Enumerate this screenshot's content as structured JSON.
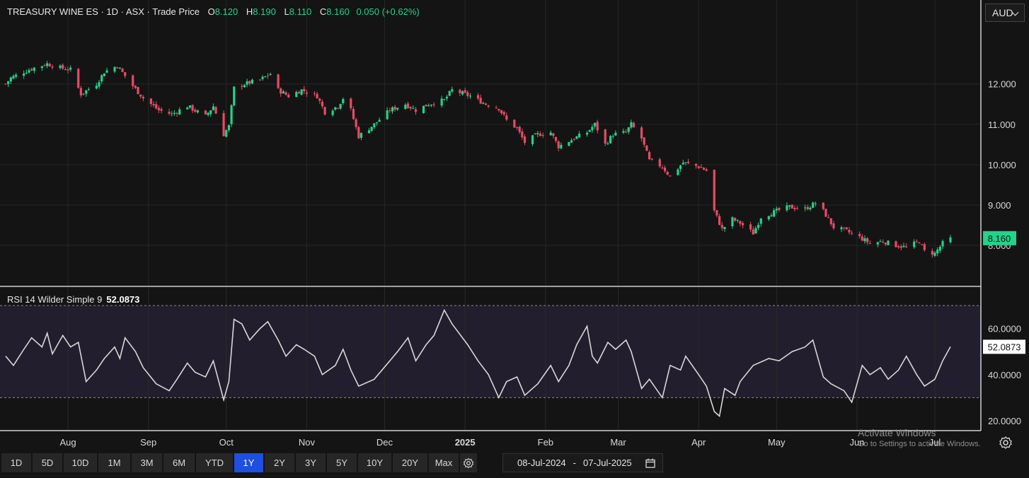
{
  "header": {
    "symbol": "TREASURY WINE ES",
    "interval": "1D",
    "exchange": "ASX",
    "price_type": "Trade Price",
    "open_label": "O",
    "open": "8.120",
    "high_label": "H",
    "high": "8.190",
    "low_label": "L",
    "low": "8.110",
    "close_label": "C",
    "close": "8.160",
    "change": "0.050 (+0.62%)"
  },
  "currency": "AUD",
  "colors": {
    "up": "#22d38a",
    "down": "#e84b66",
    "background": "#141414",
    "rsi_band": "#231e2d",
    "rsi_line": "#d7d7d7",
    "range_active": "#1f4fe0"
  },
  "rsi": {
    "label": "RSI 14 Wilder Simple 9",
    "value": "52.0873"
  },
  "range_buttons": [
    "1D",
    "5D",
    "10D",
    "1M",
    "3M",
    "6M",
    "YTD",
    "1Y",
    "2Y",
    "3Y",
    "5Y",
    "10Y",
    "20Y",
    "Max"
  ],
  "active_range": "1Y",
  "date_range": {
    "from": "08-Jul-2024",
    "to": "07-Jul-2025"
  },
  "watermark": {
    "line1": "Activate Windows",
    "line2": "Go to Settings to activate Windows."
  },
  "chart_data": [
    {
      "type": "candlestick",
      "name": "TREASURY WINE ES",
      "last_value_label": "8.160",
      "y_ticks": [
        "12.000",
        "11.000",
        "10.000",
        "9.000",
        "8.000"
      ],
      "y_tick_values": [
        12,
        11,
        10,
        9,
        8
      ],
      "ylim": [
        7.0,
        13.45
      ],
      "x_range": [
        "2024-07-08",
        "2025-07-07"
      ],
      "x_ticks": [
        {
          "label": "Aug",
          "date": "2024-08-01"
        },
        {
          "label": "Sep",
          "date": "2024-09-01"
        },
        {
          "label": "Oct",
          "date": "2024-10-01"
        },
        {
          "label": "Nov",
          "date": "2024-11-01"
        },
        {
          "label": "Dec",
          "date": "2024-12-01"
        },
        {
          "label": "2025",
          "date": "2025-01-01"
        },
        {
          "label": "Feb",
          "date": "2025-02-01"
        },
        {
          "label": "Mar",
          "date": "2025-03-01"
        },
        {
          "label": "Apr",
          "date": "2025-04-01"
        },
        {
          "label": "May",
          "date": "2025-05-01"
        },
        {
          "label": "Jun",
          "date": "2025-06-01"
        },
        {
          "label": "Jul",
          "date": "2025-07-01"
        }
      ],
      "close_path": [
        [
          "2024-07-08",
          12.0
        ],
        [
          "2024-07-10",
          12.15
        ],
        [
          "2024-07-15",
          12.3
        ],
        [
          "2024-07-19",
          12.4
        ],
        [
          "2024-07-24",
          12.5
        ],
        [
          "2024-07-29",
          12.4
        ],
        [
          "2024-08-02",
          12.35
        ],
        [
          "2024-08-06",
          11.75
        ],
        [
          "2024-08-12",
          12.0
        ],
        [
          "2024-08-15",
          12.3
        ],
        [
          "2024-08-20",
          12.45
        ],
        [
          "2024-08-26",
          11.95
        ],
        [
          "2024-08-30",
          11.65
        ],
        [
          "2024-09-05",
          11.35
        ],
        [
          "2024-09-10",
          11.25
        ],
        [
          "2024-09-16",
          11.45
        ],
        [
          "2024-09-20",
          11.3
        ],
        [
          "2024-09-23",
          11.2
        ],
        [
          "2024-09-26",
          11.45
        ],
        [
          "2024-09-30",
          10.75
        ],
        [
          "2024-10-02",
          10.95
        ],
        [
          "2024-10-04",
          11.9
        ],
        [
          "2024-10-08",
          12.0
        ],
        [
          "2024-10-14",
          12.1
        ],
        [
          "2024-10-18",
          12.25
        ],
        [
          "2024-10-21",
          11.85
        ],
        [
          "2024-10-25",
          11.7
        ],
        [
          "2024-10-30",
          11.85
        ],
        [
          "2024-11-05",
          11.7
        ],
        [
          "2024-11-08",
          11.3
        ],
        [
          "2024-11-13",
          11.45
        ],
        [
          "2024-11-15",
          11.65
        ],
        [
          "2024-11-18",
          11.35
        ],
        [
          "2024-11-21",
          10.7
        ],
        [
          "2024-11-27",
          11.0
        ],
        [
          "2024-12-03",
          11.35
        ],
        [
          "2024-12-09",
          11.5
        ],
        [
          "2024-12-13",
          11.35
        ],
        [
          "2024-12-18",
          11.5
        ],
        [
          "2024-12-24",
          11.6
        ],
        [
          "2024-12-27",
          11.85
        ],
        [
          "2025-01-03",
          11.7
        ],
        [
          "2025-01-09",
          11.5
        ],
        [
          "2025-01-14",
          11.4
        ],
        [
          "2025-01-17",
          11.1
        ],
        [
          "2025-01-21",
          10.9
        ],
        [
          "2025-01-24",
          10.55
        ],
        [
          "2025-01-29",
          10.75
        ],
        [
          "2025-02-03",
          10.8
        ],
        [
          "2025-02-06",
          10.45
        ],
        [
          "2025-02-12",
          10.65
        ],
        [
          "2025-02-17",
          10.8
        ],
        [
          "2025-02-20",
          11.0
        ],
        [
          "2025-02-24",
          10.5
        ],
        [
          "2025-02-27",
          10.75
        ],
        [
          "2025-03-04",
          10.8
        ],
        [
          "2025-03-06",
          11.0
        ],
        [
          "2025-03-10",
          10.65
        ],
        [
          "2025-03-13",
          10.1
        ],
        [
          "2025-03-18",
          9.95
        ],
        [
          "2025-03-21",
          9.7
        ],
        [
          "2025-03-26",
          10.05
        ],
        [
          "2025-04-01",
          9.95
        ],
        [
          "2025-04-04",
          9.85
        ],
        [
          "2025-04-07",
          8.85
        ],
        [
          "2025-04-10",
          8.4
        ],
        [
          "2025-04-14",
          8.65
        ],
        [
          "2025-04-17",
          8.55
        ],
        [
          "2025-04-22",
          8.3
        ],
        [
          "2025-04-25",
          8.7
        ],
        [
          "2025-05-01",
          8.85
        ],
        [
          "2025-05-06",
          8.95
        ],
        [
          "2025-05-12",
          8.9
        ],
        [
          "2025-05-16",
          9.05
        ],
        [
          "2025-05-19",
          8.85
        ],
        [
          "2025-05-23",
          8.45
        ],
        [
          "2025-05-28",
          8.35
        ],
        [
          "2025-06-02",
          8.2
        ],
        [
          "2025-06-06",
          8.05
        ],
        [
          "2025-06-11",
          8.1
        ],
        [
          "2025-06-16",
          8.0
        ],
        [
          "2025-06-20",
          7.95
        ],
        [
          "2025-06-25",
          8.1
        ],
        [
          "2025-06-27",
          7.85
        ],
        [
          "2025-07-01",
          7.8
        ],
        [
          "2025-07-04",
          8.05
        ],
        [
          "2025-07-07",
          8.16
        ]
      ]
    },
    {
      "type": "line",
      "name": "RSI 14 Wilder Simple 9",
      "last_value_label": "52.0873",
      "y_ticks": [
        "60.0000",
        "40.0000",
        "20.0000"
      ],
      "y_tick_values": [
        60,
        40,
        20
      ],
      "ylim": [
        16,
        78
      ],
      "band": [
        30,
        70
      ],
      "x_range": [
        "2024-07-08",
        "2025-07-07"
      ],
      "points": [
        [
          "2024-07-08",
          48
        ],
        [
          "2024-07-11",
          44
        ],
        [
          "2024-07-15",
          51
        ],
        [
          "2024-07-18",
          56
        ],
        [
          "2024-07-22",
          52
        ],
        [
          "2024-07-24",
          58
        ],
        [
          "2024-07-26",
          49
        ],
        [
          "2024-07-30",
          57
        ],
        [
          "2024-08-02",
          52
        ],
        [
          "2024-08-05",
          54
        ],
        [
          "2024-08-08",
          37
        ],
        [
          "2024-08-12",
          42
        ],
        [
          "2024-08-15",
          47
        ],
        [
          "2024-08-19",
          52
        ],
        [
          "2024-08-21",
          47
        ],
        [
          "2024-08-23",
          56
        ],
        [
          "2024-08-27",
          50
        ],
        [
          "2024-08-30",
          43
        ],
        [
          "2024-09-04",
          36
        ],
        [
          "2024-09-09",
          33
        ],
        [
          "2024-09-12",
          38
        ],
        [
          "2024-09-16",
          45
        ],
        [
          "2024-09-19",
          41
        ],
        [
          "2024-09-23",
          39
        ],
        [
          "2024-09-26",
          46
        ],
        [
          "2024-09-30",
          29
        ],
        [
          "2024-10-02",
          37
        ],
        [
          "2024-10-04",
          64
        ],
        [
          "2024-10-07",
          62
        ],
        [
          "2024-10-10",
          55
        ],
        [
          "2024-10-14",
          60
        ],
        [
          "2024-10-17",
          63
        ],
        [
          "2024-10-21",
          55
        ],
        [
          "2024-10-24",
          48
        ],
        [
          "2024-10-28",
          53
        ],
        [
          "2024-10-31",
          51
        ],
        [
          "2024-11-04",
          48
        ],
        [
          "2024-11-07",
          40
        ],
        [
          "2024-11-12",
          44
        ],
        [
          "2024-11-15",
          51
        ],
        [
          "2024-11-18",
          42
        ],
        [
          "2024-11-21",
          35
        ],
        [
          "2024-11-27",
          38
        ],
        [
          "2024-12-03",
          46
        ],
        [
          "2024-12-06",
          50
        ],
        [
          "2024-12-10",
          56
        ],
        [
          "2024-12-13",
          46
        ],
        [
          "2024-12-17",
          53
        ],
        [
          "2024-12-20",
          57
        ],
        [
          "2024-12-24",
          68
        ],
        [
          "2024-12-27",
          62
        ],
        [
          "2025-01-02",
          53
        ],
        [
          "2025-01-06",
          46
        ],
        [
          "2025-01-10",
          40
        ],
        [
          "2025-01-14",
          30
        ],
        [
          "2025-01-17",
          37
        ],
        [
          "2025-01-21",
          39
        ],
        [
          "2025-01-24",
          31
        ],
        [
          "2025-01-29",
          36
        ],
        [
          "2025-02-03",
          44
        ],
        [
          "2025-02-06",
          37
        ],
        [
          "2025-02-10",
          44
        ],
        [
          "2025-02-13",
          53
        ],
        [
          "2025-02-17",
          61
        ],
        [
          "2025-02-19",
          48
        ],
        [
          "2025-02-21",
          45
        ],
        [
          "2025-02-25",
          54
        ],
        [
          "2025-02-28",
          51
        ],
        [
          "2025-03-04",
          55
        ],
        [
          "2025-03-06",
          50
        ],
        [
          "2025-03-10",
          34
        ],
        [
          "2025-03-13",
          38
        ],
        [
          "2025-03-18",
          30
        ],
        [
          "2025-03-21",
          44
        ],
        [
          "2025-03-25",
          42
        ],
        [
          "2025-03-27",
          48
        ],
        [
          "2025-04-01",
          40
        ],
        [
          "2025-04-04",
          35
        ],
        [
          "2025-04-07",
          24
        ],
        [
          "2025-04-09",
          22
        ],
        [
          "2025-04-11",
          34
        ],
        [
          "2025-04-15",
          31
        ],
        [
          "2025-04-17",
          37
        ],
        [
          "2025-04-22",
          44
        ],
        [
          "2025-04-28",
          47
        ],
        [
          "2025-05-02",
          46
        ],
        [
          "2025-05-07",
          50
        ],
        [
          "2025-05-12",
          52
        ],
        [
          "2025-05-15",
          55
        ],
        [
          "2025-05-19",
          39
        ],
        [
          "2025-05-22",
          36
        ],
        [
          "2025-05-27",
          33
        ],
        [
          "2025-05-30",
          28
        ],
        [
          "2025-06-03",
          44
        ],
        [
          "2025-06-06",
          40
        ],
        [
          "2025-06-10",
          43
        ],
        [
          "2025-06-13",
          38
        ],
        [
          "2025-06-17",
          42
        ],
        [
          "2025-06-20",
          48
        ],
        [
          "2025-06-24",
          40
        ],
        [
          "2025-06-27",
          35
        ],
        [
          "2025-07-01",
          38
        ],
        [
          "2025-07-04",
          46
        ],
        [
          "2025-07-07",
          52.0873
        ]
      ]
    }
  ]
}
